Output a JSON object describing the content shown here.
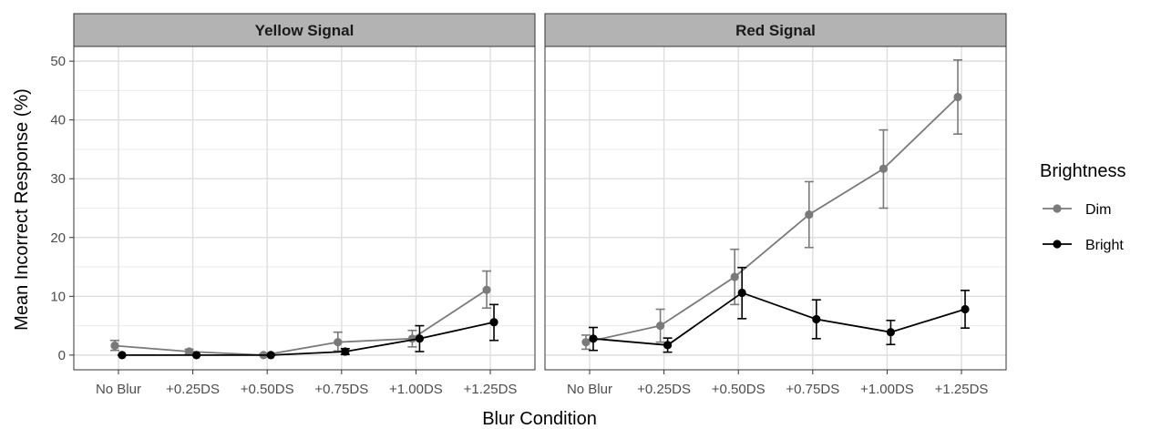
{
  "chart_data": {
    "type": "line",
    "xlabel": "Blur Condition",
    "ylabel": "Mean Incorrect Response (%)",
    "ylim": [
      -2.5,
      52.5
    ],
    "yticks": [
      0,
      10,
      20,
      30,
      40,
      50
    ],
    "grid": true,
    "categories": [
      "No Blur",
      "+0.25DS",
      "+0.50DS",
      "+0.75DS",
      "+1.00DS",
      "+1.25DS"
    ],
    "legend": {
      "title": "Brightness",
      "position": "right"
    },
    "panels": [
      {
        "title": "Yellow Signal",
        "series": [
          {
            "name": "Dim",
            "color": "#7a7a7a",
            "values": [
              1.6,
              0.6,
              0.0,
              2.2,
              2.8,
              11.1
            ],
            "err_low": [
              0.8,
              0.2,
              0.0,
              0.7,
              1.4,
              8.0
            ],
            "err_high": [
              2.5,
              1.0,
              0.2,
              3.9,
              4.2,
              14.3
            ]
          },
          {
            "name": "Bright",
            "color": "#000000",
            "values": [
              0.0,
              0.0,
              0.0,
              0.6,
              2.8,
              5.6
            ],
            "err_low": [
              0.0,
              0.0,
              0.0,
              0.1,
              0.6,
              2.5
            ],
            "err_high": [
              0.0,
              0.0,
              0.0,
              1.1,
              5.0,
              8.6
            ]
          }
        ]
      },
      {
        "title": "Red Signal",
        "series": [
          {
            "name": "Dim",
            "color": "#7a7a7a",
            "values": [
              2.2,
              5.0,
              13.3,
              23.9,
              31.7,
              43.9
            ],
            "err_low": [
              1.0,
              2.2,
              8.6,
              18.3,
              25.0,
              37.6
            ],
            "err_high": [
              3.4,
              7.8,
              18.0,
              29.5,
              38.3,
              50.2
            ]
          },
          {
            "name": "Bright",
            "color": "#000000",
            "values": [
              2.8,
              1.7,
              10.6,
              6.1,
              3.9,
              7.8
            ],
            "err_low": [
              0.8,
              0.5,
              6.2,
              2.8,
              1.8,
              4.6
            ],
            "err_high": [
              4.7,
              2.9,
              14.9,
              9.4,
              5.9,
              11.0
            ]
          }
        ]
      }
    ]
  }
}
